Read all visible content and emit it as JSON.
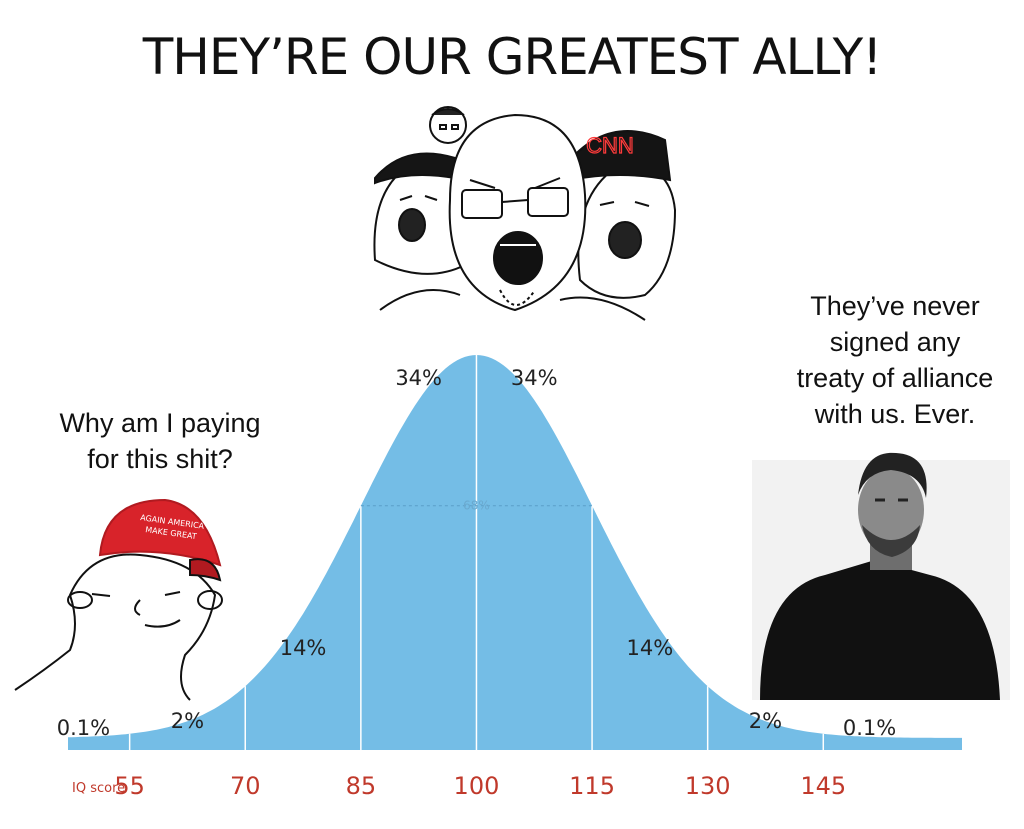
{
  "title": "THEY’RE OUR GREATEST ALLY!",
  "left_caption": [
    "Why am I paying",
    "for this shit?"
  ],
  "right_caption": [
    "They’ve never",
    "signed any",
    "treaty of alliance",
    "with us. Ever."
  ],
  "hat_text": [
    "AGAIN AMERICA",
    "MAKE GREAT"
  ],
  "cnn_logo": "CNN",
  "colors": {
    "curve": "#74bde6",
    "tick": "#c0392b",
    "hat": "#d8232a"
  },
  "icons": [
    "wojak-crowd",
    "wojak-maga",
    "chad-photo"
  ],
  "chart_data": {
    "type": "area",
    "distribution": "normal",
    "mean": 100,
    "sd": 15,
    "xlim": [
      47,
      163
    ],
    "axis_label": "IQ score",
    "ticks": [
      55,
      70,
      85,
      100,
      115,
      130,
      145
    ],
    "bands": [
      {
        "label": "0.1%",
        "x": 49
      },
      {
        "label": "2%",
        "x": 62.5
      },
      {
        "label": "14%",
        "x": 77.5
      },
      {
        "label": "34%",
        "x": 92.5
      },
      {
        "label": "34%",
        "x": 107.5
      },
      {
        "label": "14%",
        "x": 122.5
      },
      {
        "label": "2%",
        "x": 137.5
      },
      {
        "label": "0.1%",
        "x": 151
      }
    ],
    "center_band": "68%"
  }
}
